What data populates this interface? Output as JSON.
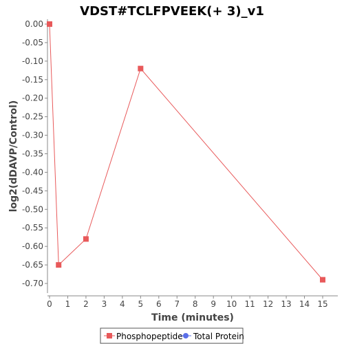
{
  "chart_data": {
    "type": "line",
    "title": "VDST#TCLFPVEEK(+ 3)_v1",
    "xlabel": "Time (minutes)",
    "ylabel": "log2(dDAVP/Control)",
    "xlim": [
      0,
      16
    ],
    "ylim": [
      -0.73,
      0.0
    ],
    "x_ticks": [
      0,
      1,
      2,
      3,
      4,
      5,
      6,
      7,
      8,
      9,
      10,
      11,
      12,
      13,
      14,
      15
    ],
    "y_ticks": [
      0.0,
      -0.05,
      -0.1,
      -0.15,
      -0.2,
      -0.25,
      -0.3,
      -0.35,
      -0.4,
      -0.45,
      -0.5,
      -0.55,
      -0.6,
      -0.65,
      -0.7
    ],
    "y_tick_labels": [
      "0.00",
      "-0.05",
      "-0.10",
      "-0.15",
      "-0.20",
      "-0.25",
      "-0.30",
      "-0.35",
      "-0.40",
      "-0.45",
      "-0.50",
      "-0.55",
      "-0.60",
      "-0.65",
      "-0.70"
    ],
    "grid": false,
    "legend_position": "bottom",
    "series": [
      {
        "name": "Phosphopeptide",
        "color": "#e8595a",
        "marker": "square",
        "x": [
          0,
          0.5,
          2,
          5,
          15
        ],
        "y": [
          0.0,
          -0.65,
          -0.58,
          -0.12,
          -0.69
        ]
      },
      {
        "name": "Total Protein",
        "color": "#5a6ee8",
        "marker": "circle",
        "x": [],
        "y": []
      }
    ]
  }
}
